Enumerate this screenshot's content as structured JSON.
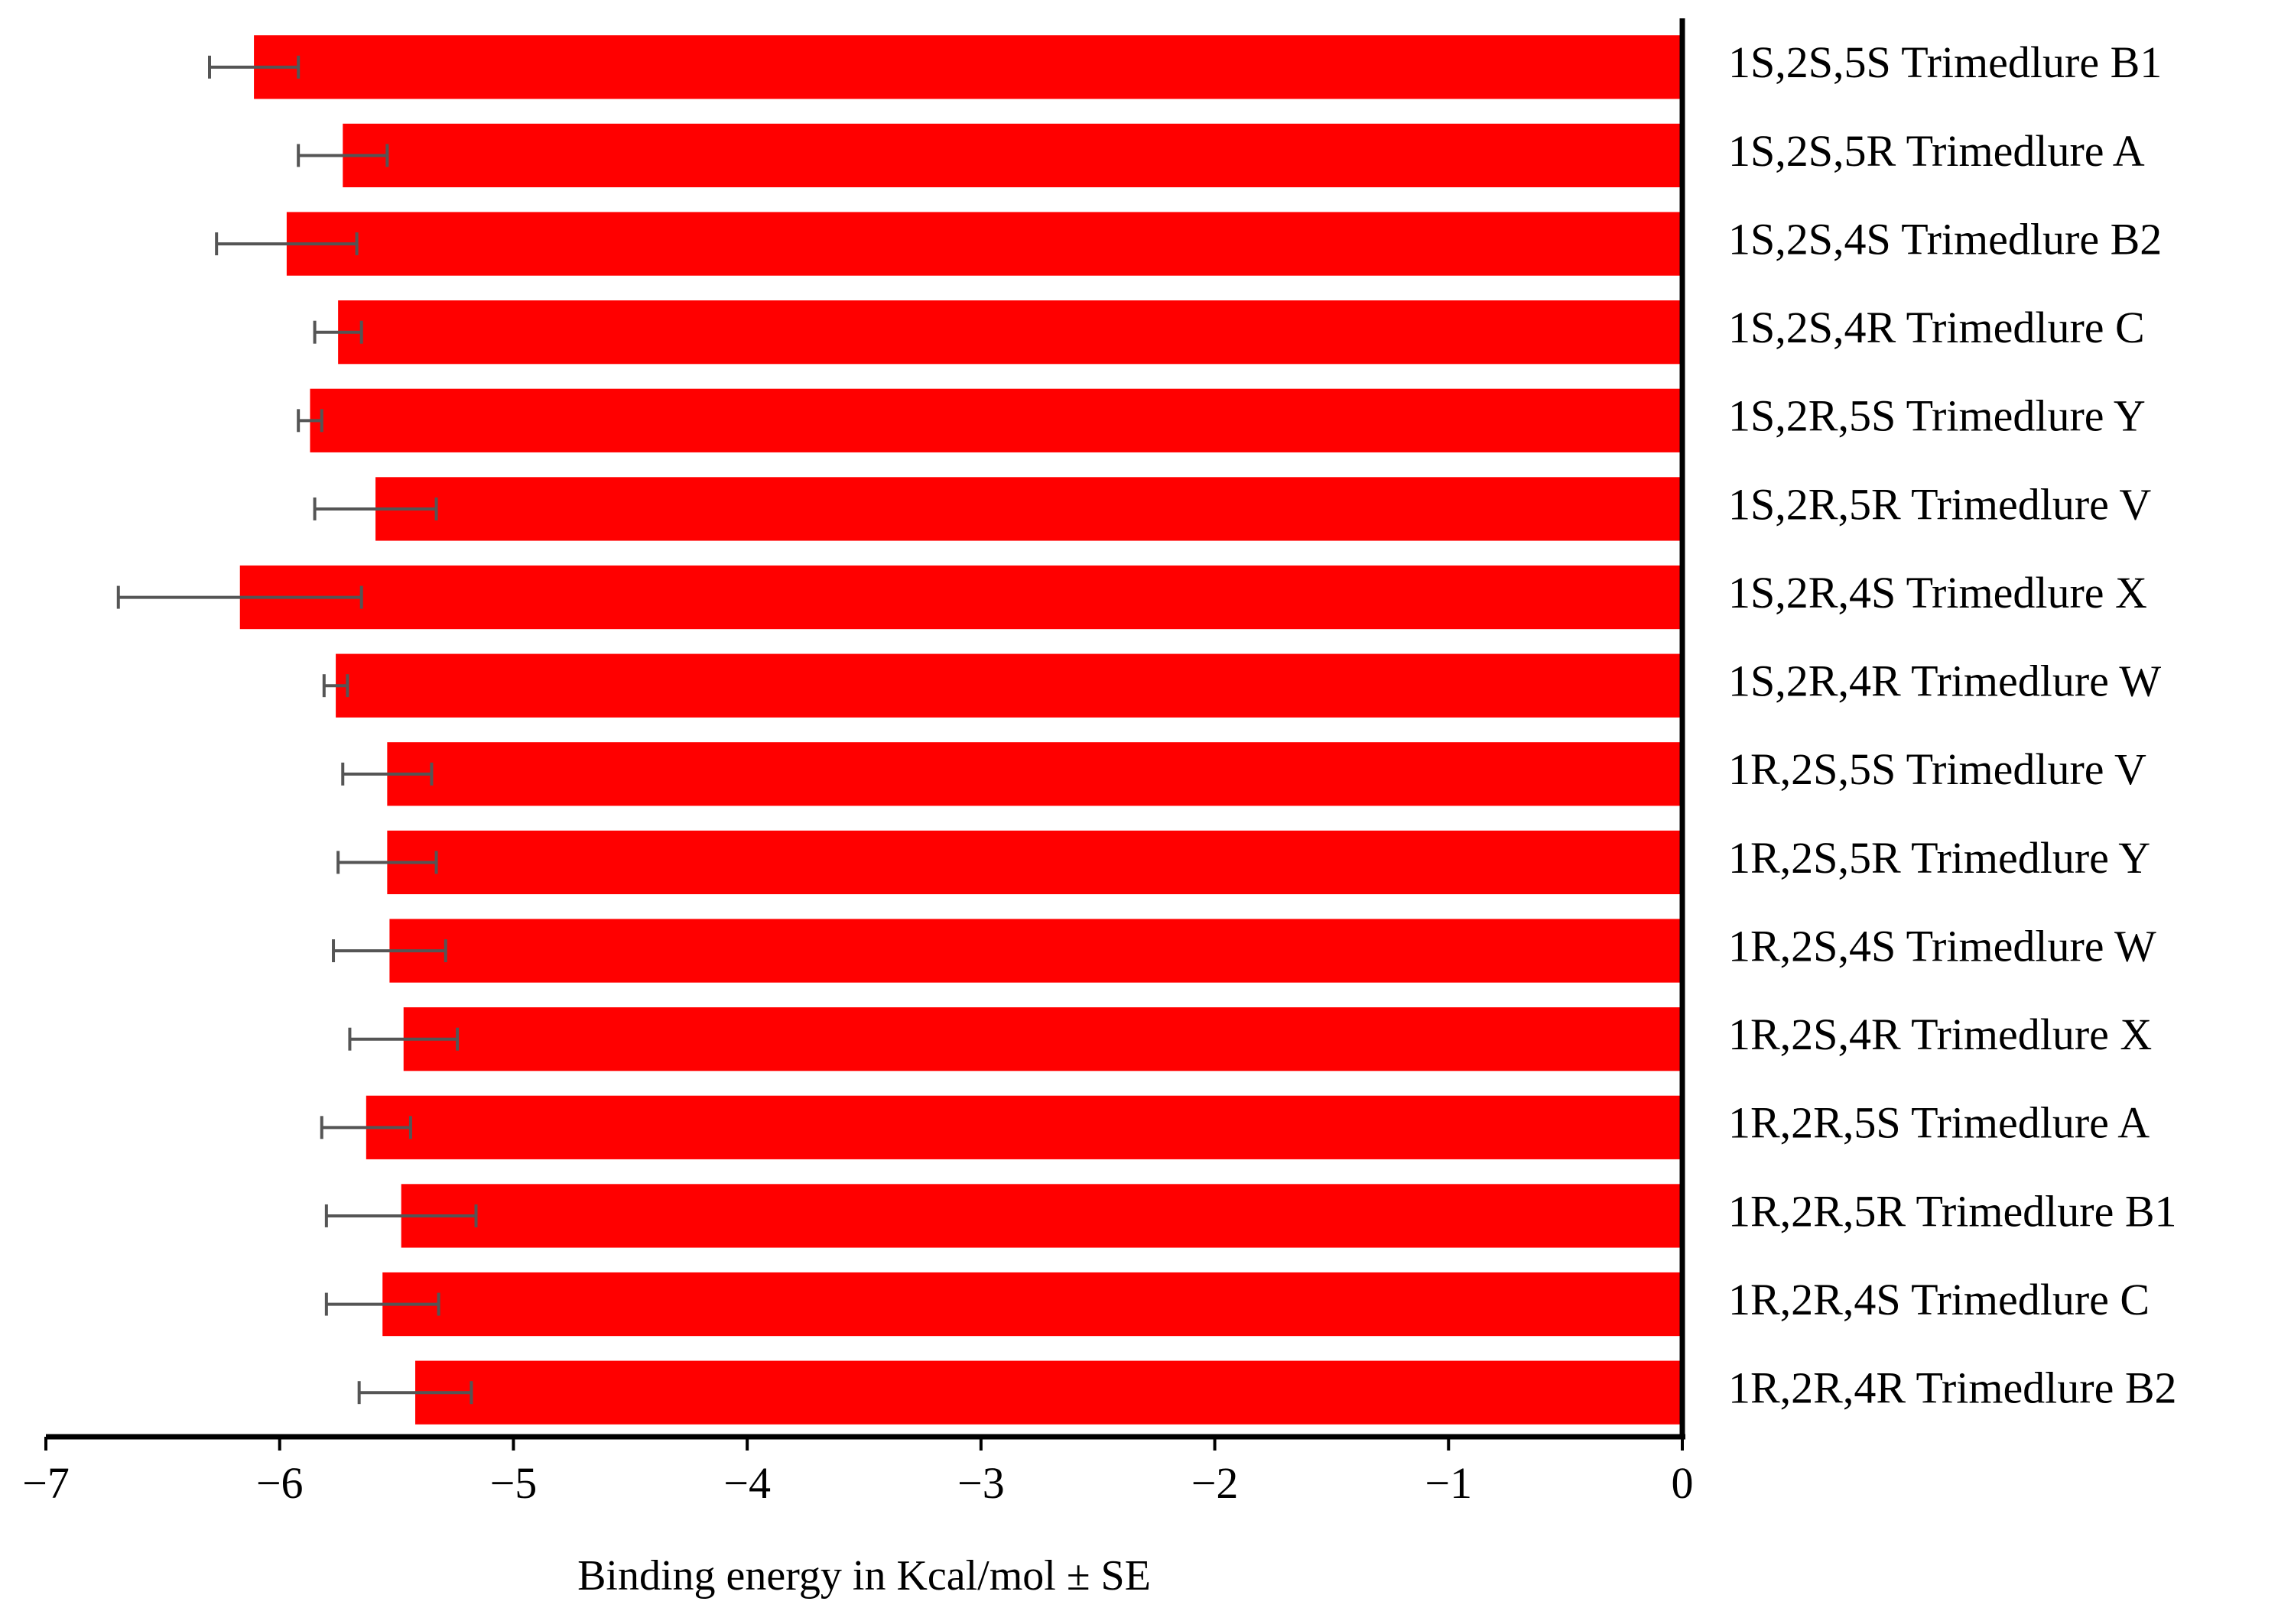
{
  "chart_data": {
    "type": "bar",
    "orientation": "horizontal",
    "xlabel": "Binding energy in Kcal/mol ± SE",
    "xlim": [
      -7,
      0
    ],
    "xticks": [
      -7,
      -6,
      -5,
      -4,
      -3,
      -2,
      -1,
      0
    ],
    "xtick_labels": [
      "−7",
      "−6",
      "−5",
      "−4",
      "−3",
      "−2",
      "−1",
      "0"
    ],
    "category_axis_side": "right",
    "categories": [
      "1S,2S,5S Trimedlure B1",
      "1S,2S,5R Trimedlure A",
      "1S,2S,4S Trimedlure B2",
      "1S,2S,4R Trimedlure C",
      "1S,2R,5S Trimedlure Y",
      "1S,2R,5R Trimedlure V",
      "1S,2R,4S Trimedlure X",
      "1S,2R,4R Trimedlure W",
      "1R,2S,5S Trimedlure V",
      "1R,2S,5R Trimedlure Y",
      "1R,2S,4S Trimedlure W",
      "1R,2S,4R Trimedlure X",
      "1R,2R,5S Trimedlure A",
      "1R,2R,5R Trimedlure B1",
      "1R,2R,4S Trimedlure C",
      "1R,2R,4R Trimedlure B2"
    ],
    "values": [
      -6.11,
      -5.73,
      -5.97,
      -5.75,
      -5.87,
      -5.59,
      -6.17,
      -5.76,
      -5.54,
      -5.54,
      -5.53,
      -5.47,
      -5.63,
      -5.48,
      -5.56,
      -5.42
    ],
    "errors": [
      0.19,
      0.19,
      0.3,
      0.1,
      0.05,
      0.26,
      0.52,
      0.05,
      0.19,
      0.21,
      0.24,
      0.23,
      0.19,
      0.32,
      0.24,
      0.24
    ],
    "bar_color": "#ff0000",
    "error_bar_color": "#555555",
    "grid": false,
    "legend": "none"
  }
}
